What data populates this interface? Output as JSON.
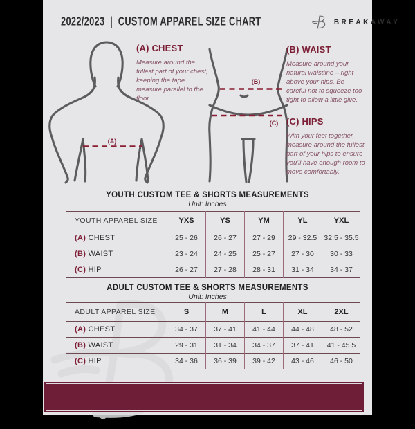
{
  "header": {
    "title": "2022/2023  |  CUSTOM APPAREL SIZE CHART",
    "brand": "BREAKAWAY",
    "logo_icon": "breakaway-b-logo"
  },
  "measure_guide": {
    "chest": {
      "heading": "(A) CHEST",
      "marker": "(A)",
      "body": "Measure around the fullest part of your chest, keeping the tape measure parallel to the floor"
    },
    "waist": {
      "heading": "(B) WAIST",
      "marker": "(B)",
      "body": "Measure around your natural waistline – right above your hips. Be careful not to squeeze too tight to allow a little give."
    },
    "hips": {
      "heading": "(C) HIPS",
      "marker": "(C)",
      "body": "With your feet together, measure around the fullest part of your hips to ensure you'll have enough room to move comfortably."
    }
  },
  "youth_table": {
    "title": "YOUTH CUSTOM TEE & SHORTS MEASUREMENTS",
    "unit": "Unit: Inches",
    "header": [
      "YOUTH APPAREL SIZE",
      "YXS",
      "YS",
      "YM",
      "YL",
      "YXL"
    ],
    "rows": [
      {
        "prefix": "(A)",
        "label": "CHEST",
        "values": [
          "25 - 26",
          "26 - 27",
          "27 - 29",
          "29 - 32.5",
          "32.5 - 35.5"
        ]
      },
      {
        "prefix": "(B)",
        "label": "WAIST",
        "values": [
          "23 - 24",
          "24 - 25",
          "25 - 27",
          "27 - 30",
          "30 - 33"
        ]
      },
      {
        "prefix": "(C)",
        "label": "HIP",
        "values": [
          "26 - 27",
          "27 - 28",
          "28 - 31",
          "31 - 34",
          "34 - 37"
        ]
      }
    ]
  },
  "adult_table": {
    "title": "ADULT CUSTOM TEE & SHORTS MEASUREMENTS",
    "unit": "Unit: Inches",
    "header": [
      "ADULT APPAREL SIZE",
      "S",
      "M",
      "L",
      "XL",
      "2XL"
    ],
    "rows": [
      {
        "prefix": "(A)",
        "label": "CHEST",
        "values": [
          "34 - 37",
          "37 - 41",
          "41 - 44",
          "44 - 48",
          "48 - 52"
        ]
      },
      {
        "prefix": "(B)",
        "label": "WAIST",
        "values": [
          "29 - 31",
          "31 - 34",
          "34 - 37",
          "37 - 41",
          "41 - 45.5"
        ]
      },
      {
        "prefix": "(C)",
        "label": "HIP",
        "values": [
          "34 - 36",
          "36 - 39",
          "39 - 42",
          "43 - 46",
          "46 - 50"
        ]
      }
    ]
  },
  "colors": {
    "accent_maroon": "#7c1f36",
    "footer_bar": "#6e1e36",
    "dashed_line": "#8a1e33",
    "figure_outline": "#5c5c5e",
    "page_background": "#e6e6e8",
    "letterbox": "#000000"
  }
}
